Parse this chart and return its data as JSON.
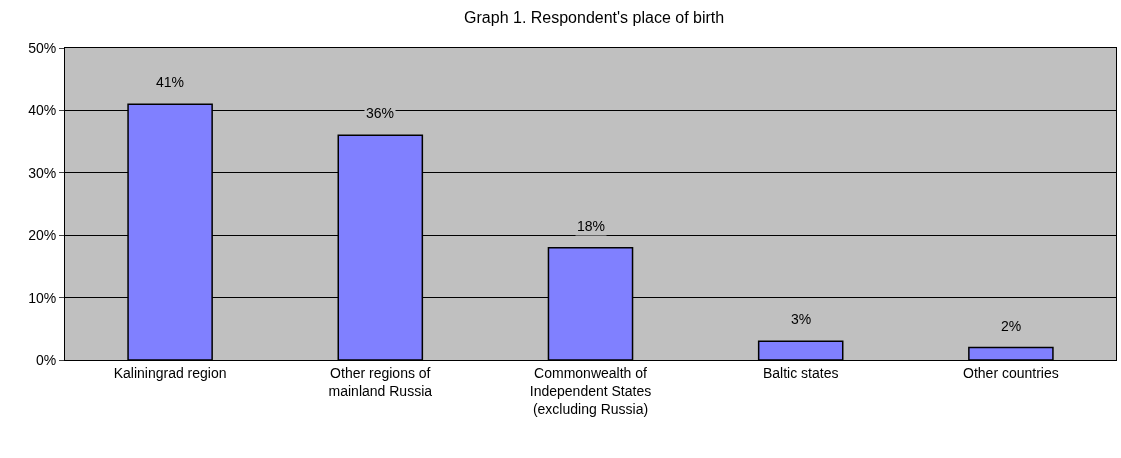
{
  "chart_data": {
    "type": "bar",
    "title": "Graph 1. Respondent's place of birth",
    "categories": [
      "Kaliningrad region",
      "Other regions of mainland Russia",
      "Commonwealth of Independent States (excluding Russia)",
      "Baltic states",
      "Other countries"
    ],
    "values": [
      41,
      36,
      18,
      3,
      2
    ],
    "value_labels": [
      "41%",
      "36%",
      "18%",
      "3%",
      "2%"
    ],
    "color": "#8080ff",
    "ylim": [
      0,
      50
    ],
    "yticks": [
      {
        "value": 0,
        "label": "0%"
      },
      {
        "value": 10,
        "label": "10%"
      },
      {
        "value": 20,
        "label": "20%"
      },
      {
        "value": 30,
        "label": "30%"
      },
      {
        "value": 40,
        "label": "40%"
      },
      {
        "value": 50,
        "label": "50%"
      }
    ],
    "grid": "y",
    "legend": false
  }
}
